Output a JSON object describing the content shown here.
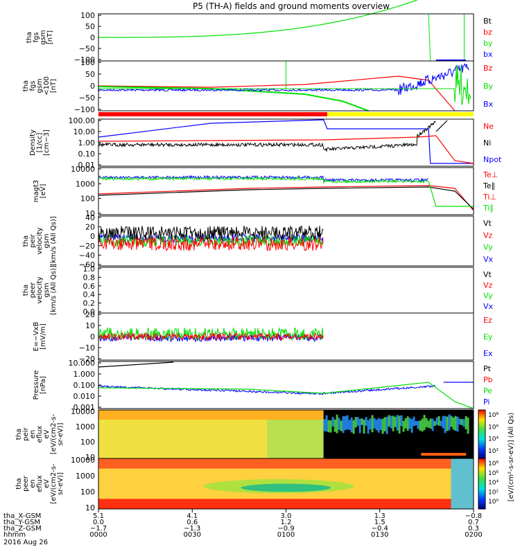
{
  "title": "P5 (TH-A) fields and ground moments overview",
  "colors": {
    "black": "#000000",
    "red": "#ff0000",
    "green": "#00e000",
    "blue": "#0000ff",
    "yellow": "#ffff00"
  },
  "chart_data": [
    {
      "id": "fgs",
      "type": "line",
      "ylabel": [
        "tha",
        "fgs",
        "gsm",
        "[nT]"
      ],
      "ylim": [
        -100,
        100
      ],
      "ticks": [
        "100",
        "50",
        "0",
        "−50",
        "−100"
      ],
      "legend": [
        {
          "name": "Bt",
          "color": "black"
        },
        {
          "name": "bz",
          "color": "red"
        },
        {
          "name": "by",
          "color": "green"
        },
        {
          "name": "bx",
          "color": "blue"
        }
      ]
    },
    {
      "id": "fgs_dsl",
      "type": "line",
      "ylabel": [
        "tha",
        "fgs",
        "gsm",
        "<100",
        "[nT]"
      ],
      "ylim": [
        -125,
        125
      ],
      "ticks": [
        "100",
        "50",
        "0",
        "−50",
        "−100"
      ],
      "legend": [
        {
          "name": "Bz",
          "color": "red"
        },
        {
          "name": "By",
          "color": "green"
        },
        {
          "name": "Bx",
          "color": "blue"
        }
      ]
    },
    {
      "id": "density",
      "type": "line",
      "log": true,
      "ylabel": [
        "Density",
        "[1/cc]",
        "[cm−3]"
      ],
      "ylim": [
        0.005,
        200
      ],
      "ticks": [
        "100.00",
        "10.00",
        "1.00",
        "0.10",
        "0.01"
      ],
      "legend": [
        {
          "name": "Ne",
          "color": "red"
        },
        {
          "name": "Ni",
          "color": "black"
        },
        {
          "name": "Npot",
          "color": "blue"
        }
      ]
    },
    {
      "id": "temp",
      "type": "line",
      "log": true,
      "ylabel": [
        "magt3",
        "[eV]"
      ],
      "ylim": [
        3,
        12000
      ],
      "ticks": [
        "10000",
        "1000",
        "100",
        "10"
      ],
      "legend": [
        {
          "name": "Te⊥",
          "color": "red"
        },
        {
          "name": "Te∥",
          "color": "black"
        },
        {
          "name": "Ti⊥",
          "color": "red"
        },
        {
          "name": "Ti∥",
          "color": "green"
        }
      ]
    },
    {
      "id": "vi",
      "type": "line",
      "ylabel": [
        "tha",
        "peir",
        "velocity",
        "gsm",
        "[km/s (All Qs)]"
      ],
      "ylim": [
        -60,
        40
      ],
      "ticks": [
        "40",
        "20",
        "0",
        "−20",
        "−40",
        "−60"
      ],
      "legend": [
        {
          "name": "Vt",
          "color": "black"
        },
        {
          "name": "Vz",
          "color": "red"
        },
        {
          "name": "Vy",
          "color": "green"
        },
        {
          "name": "Vx",
          "color": "blue"
        }
      ]
    },
    {
      "id": "ve",
      "type": "line",
      "ylabel": [
        "tha",
        "peer",
        "velocity",
        "gsm",
        "[km/s (All Qs)]"
      ],
      "ylim": [
        0,
        1
      ],
      "ticks": [
        "1.0",
        "0.8",
        "0.6",
        "0.4",
        "0.2",
        "0.0"
      ],
      "legend": [
        {
          "name": "Vt",
          "color": "black"
        },
        {
          "name": "Vz",
          "color": "red"
        },
        {
          "name": "Vy",
          "color": "green"
        },
        {
          "name": "Vx",
          "color": "blue"
        }
      ]
    },
    {
      "id": "efield",
      "type": "line",
      "ylabel": [
        "E=−VxB",
        "[mV/m]"
      ],
      "ylim": [
        -25,
        25
      ],
      "ticks": [
        "20",
        "10",
        "0",
        "−10",
        "−20"
      ],
      "legend": [
        {
          "name": "Ez",
          "color": "red"
        },
        {
          "name": "Ey",
          "color": "green"
        },
        {
          "name": "Ex",
          "color": "blue"
        }
      ]
    },
    {
      "id": "pressure",
      "type": "line",
      "log": true,
      "ylabel": [
        "Pressure",
        "[nPa]"
      ],
      "ylim": [
        0.0005,
        20
      ],
      "ticks": [
        "10.000",
        "1.000",
        "0.100",
        "0.010",
        "0.001"
      ],
      "legend": [
        {
          "name": "Pt",
          "color": "black"
        },
        {
          "name": "Pb",
          "color": "red"
        },
        {
          "name": "Pe",
          "color": "green"
        },
        {
          "name": "Pi",
          "color": "blue"
        }
      ]
    },
    {
      "id": "ion_spec",
      "type": "heatmap",
      "ylabel": [
        "tha",
        "peir",
        "en",
        "eflux",
        "eV",
        "[eV/(cm2-s-",
        "sr-eV)]"
      ],
      "ticks": [
        "10000",
        "1000",
        "100",
        "10"
      ],
      "colorbar": {
        "ticks": [
          "10⁸",
          "10⁶",
          "10⁴",
          "10²"
        ],
        "label": "[eV/(cm²-s-sr-eV)] (All Qs)"
      }
    },
    {
      "id": "elec_spec",
      "type": "heatmap",
      "ylabel": [
        "tha",
        "peer",
        "en",
        "eflux",
        "eV",
        "[eV/(cm2-s-",
        "sr-eV)]"
      ],
      "ticks": [
        "10000",
        "1000",
        "100",
        "10"
      ],
      "colorbar": {
        "ticks": [
          "10⁸",
          "10⁶",
          "10⁴",
          "10²",
          "10⁰"
        ],
        "label": "[eV/(cm²-s-sr-eV)]"
      }
    }
  ],
  "xaxis": {
    "rows": [
      {
        "label": "tha_X-GSM",
        "values": [
          "5.1",
          "4.1",
          "3.0",
          "1.3",
          "−0.8"
        ]
      },
      {
        "label": "tha_Y-GSM",
        "values": [
          "0.0",
          "0.6",
          "1.2",
          "1.5",
          "0.7"
        ]
      },
      {
        "label": "tha_Z-GSM",
        "values": [
          "−1.7",
          "−1.3",
          "−0.9",
          "−0.4",
          "0.3"
        ]
      },
      {
        "label": "hhmm",
        "values": [
          "0000",
          "0030",
          "0100",
          "0130",
          "0200"
        ]
      }
    ],
    "date": "2016 Aug 26"
  }
}
